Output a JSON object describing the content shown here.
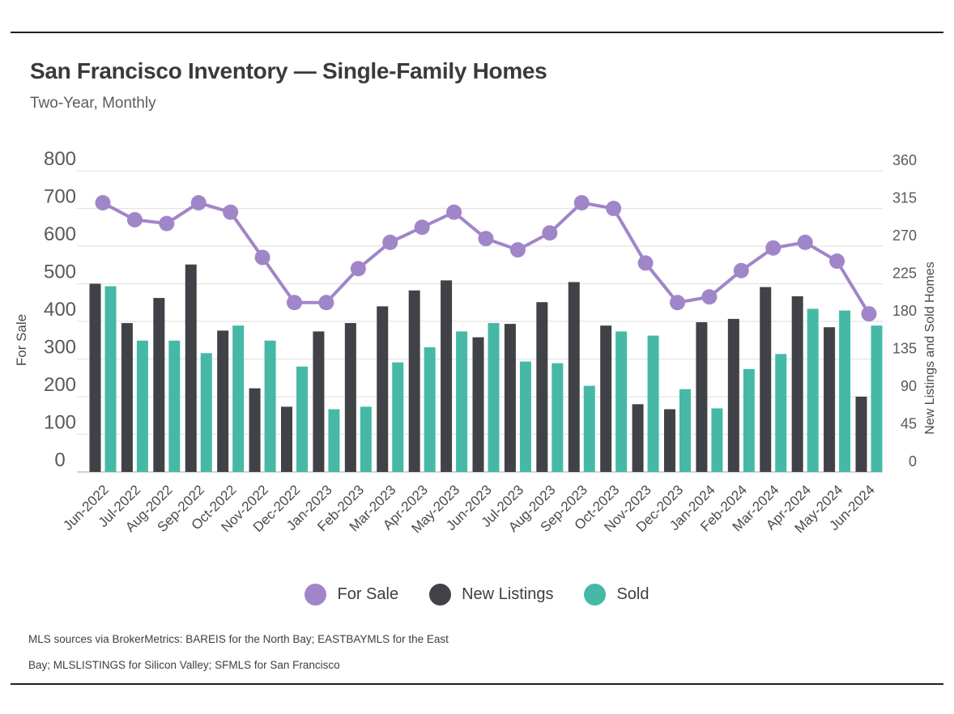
{
  "page": {
    "title": "San Francisco Inventory — Single-Family Homes",
    "subtitle": "Two-Year, Monthly",
    "footer_line1": "MLS sources via BrokerMetrics: BAREIS for the North Bay; EASTBAYMLS for the East",
    "footer_line2": "Bay; MLSLISTINGS for Silicon Valley; SFMLS for San Francisco"
  },
  "colors": {
    "for_sale": "#a185c9",
    "new_listings": "#414247",
    "sold": "#45b9a6",
    "grid": "#e3e3e3",
    "baseline": "#c4c4c4",
    "tick_text": "#595959",
    "axis_title_text": "#4a4a4a"
  },
  "legend": [
    {
      "key": "for_sale",
      "label": "For Sale"
    },
    {
      "key": "new_listings",
      "label": "New Listings"
    },
    {
      "key": "sold",
      "label": "Sold"
    }
  ],
  "chart_data": {
    "type": "line+bar",
    "title": "San Francisco Inventory — Single-Family Homes",
    "subtitle": "Two-Year, Monthly",
    "grid": true,
    "legend_position": "bottom",
    "categories": [
      "Jun-2022",
      "Jul-2022",
      "Aug-2022",
      "Sep-2022",
      "Oct-2022",
      "Nov-2022",
      "Dec-2022",
      "Jan-2023",
      "Feb-2023",
      "Mar-2023",
      "Apr-2023",
      "May-2023",
      "Jun-2023",
      "Jul-2023",
      "Aug-2023",
      "Sep-2023",
      "Oct-2023",
      "Nov-2023",
      "Dec-2023",
      "Jan-2024",
      "Feb-2024",
      "Mar-2024",
      "Apr-2024",
      "May-2024",
      "Jun-2024"
    ],
    "left_axis": {
      "title": "For Sale",
      "min": 0,
      "max": 800,
      "ticks": [
        0,
        100,
        200,
        300,
        400,
        500,
        600,
        700,
        800
      ]
    },
    "right_axis": {
      "title": "New Listings and Sold Homes",
      "min": 0,
      "max": 360,
      "ticks": [
        0,
        45,
        90,
        135,
        180,
        225,
        270,
        315,
        360
      ]
    },
    "series": [
      {
        "name": "For Sale",
        "type": "line",
        "axis": "left",
        "color_key": "for_sale",
        "values": [
          715,
          670,
          660,
          715,
          690,
          570,
          450,
          450,
          540,
          610,
          650,
          690,
          620,
          590,
          635,
          715,
          700,
          555,
          450,
          465,
          535,
          595,
          610,
          560,
          420
        ]
      },
      {
        "name": "New Listings",
        "type": "bar",
        "axis": "right",
        "color_key": "new_listings",
        "values": [
          225,
          178,
          208,
          248,
          169,
          100,
          78,
          168,
          178,
          198,
          217,
          229,
          161,
          177,
          203,
          227,
          175,
          81,
          75,
          179,
          183,
          221,
          210,
          173,
          90
        ]
      },
      {
        "name": "Sold",
        "type": "bar",
        "axis": "right",
        "color_key": "sold",
        "values": [
          222,
          157,
          157,
          142,
          175,
          157,
          126,
          75,
          78,
          131,
          149,
          168,
          178,
          132,
          130,
          103,
          168,
          163,
          99,
          76,
          123,
          141,
          195,
          193,
          175
        ]
      }
    ]
  }
}
